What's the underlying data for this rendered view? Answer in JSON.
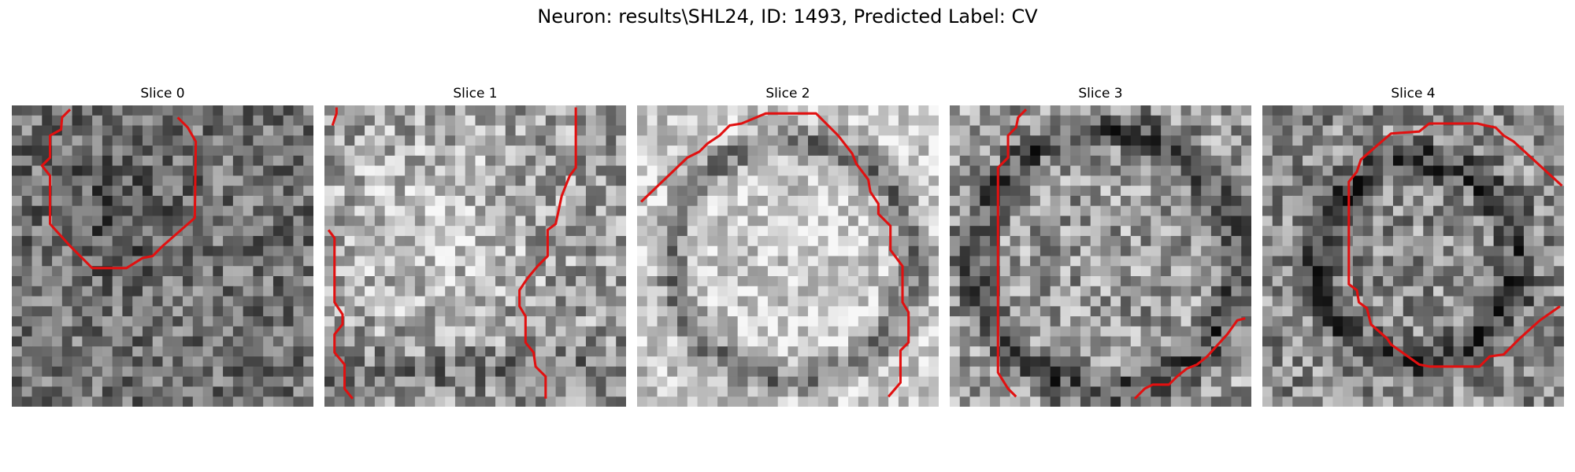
{
  "figure": {
    "title": "Neuron: results\\SHL24, ID: 1493, Predicted Label: CV"
  },
  "colors": {
    "contour": "#e11010",
    "background": "#ffffff"
  },
  "slices": [
    {
      "title": "Slice 0",
      "brightness": 0.45,
      "contrast": 0.5,
      "pattern": "dark-blob",
      "seed": 11
    },
    {
      "title": "Slice 1",
      "brightness": 0.62,
      "contrast": 0.55,
      "pattern": "bright-center",
      "seed": 23
    },
    {
      "title": "Slice 2",
      "brightness": 0.68,
      "contrast": 0.45,
      "pattern": "ring",
      "seed": 37
    },
    {
      "title": "Slice 3",
      "brightness": 0.55,
      "contrast": 0.55,
      "pattern": "ring-faint",
      "seed": 41
    },
    {
      "title": "Slice 4",
      "brightness": 0.55,
      "contrast": 0.55,
      "pattern": "ring-dark",
      "seed": 53
    }
  ]
}
